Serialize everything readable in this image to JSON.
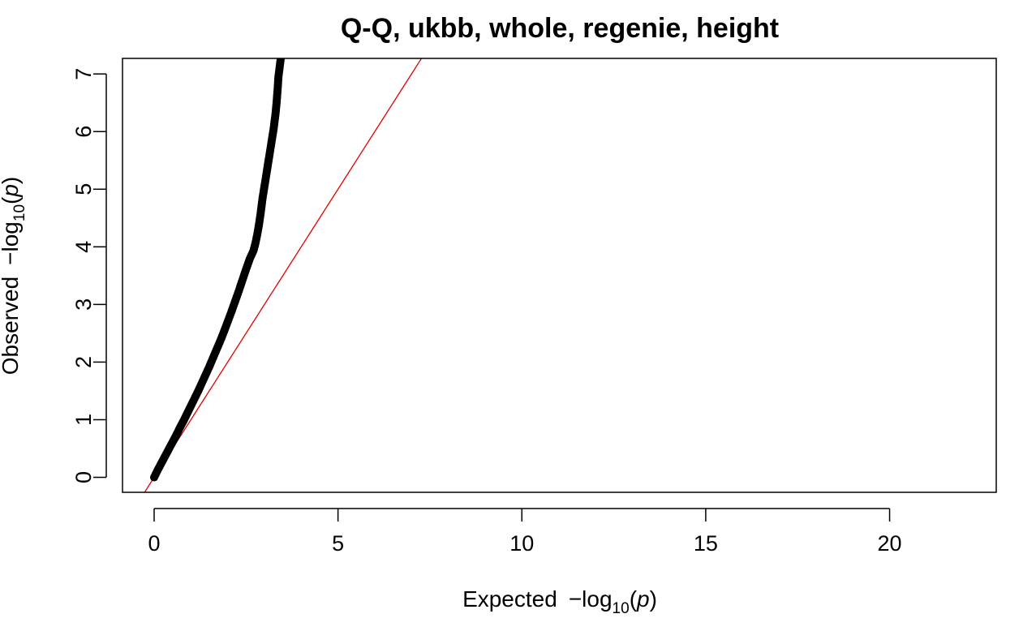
{
  "chart_data": {
    "type": "scatter",
    "title": "Q-Q, ukbb, whole, regenie, height",
    "xlabel": {
      "prefix": "Expected",
      "minus": "−",
      "log": "log",
      "sub": "10",
      "open": "(",
      "var": "p",
      "close": ")"
    },
    "ylabel": {
      "prefix": "Observed",
      "minus": "−",
      "log": "log",
      "sub": "10",
      "open": "(",
      "var": "p",
      "close": ")"
    },
    "xlim": [
      -0.86,
      22.9
    ],
    "ylim": [
      -0.26,
      7.27
    ],
    "x_ticks": [
      0,
      5,
      10,
      15,
      20
    ],
    "y_ticks": [
      0,
      1,
      2,
      3,
      4,
      5,
      6,
      7
    ],
    "grid": false,
    "legend": "none",
    "series": [
      {
        "kind": "points",
        "color": "#000000",
        "x": [
          0.0,
          0.1,
          0.2,
          0.3,
          0.4,
          0.5,
          0.6,
          0.7,
          0.8,
          0.9,
          1.0,
          1.1,
          1.2,
          1.3,
          1.4,
          1.5,
          1.6,
          1.7,
          1.8,
          1.9,
          2.0,
          2.1,
          2.2,
          2.3,
          2.4,
          2.5,
          2.6,
          2.7,
          2.75,
          2.8,
          2.85,
          2.9,
          2.95,
          3.0,
          3.05,
          3.1,
          3.15,
          3.2,
          3.25,
          3.3,
          3.33,
          3.36,
          3.38,
          3.4,
          3.42,
          3.44
        ],
        "y": [
          0.0,
          0.13,
          0.25,
          0.37,
          0.49,
          0.61,
          0.73,
          0.86,
          0.98,
          1.11,
          1.24,
          1.37,
          1.5,
          1.64,
          1.78,
          1.92,
          2.07,
          2.22,
          2.37,
          2.53,
          2.7,
          2.87,
          3.05,
          3.23,
          3.42,
          3.61,
          3.79,
          3.93,
          4.05,
          4.2,
          4.38,
          4.6,
          4.85,
          5.05,
          5.25,
          5.45,
          5.65,
          5.85,
          6.05,
          6.3,
          6.5,
          6.75,
          6.95,
          7.05,
          7.15,
          7.25
        ]
      },
      {
        "kind": "reference-line",
        "color": "#e00000",
        "slope": 1,
        "intercept": 0
      }
    ]
  }
}
